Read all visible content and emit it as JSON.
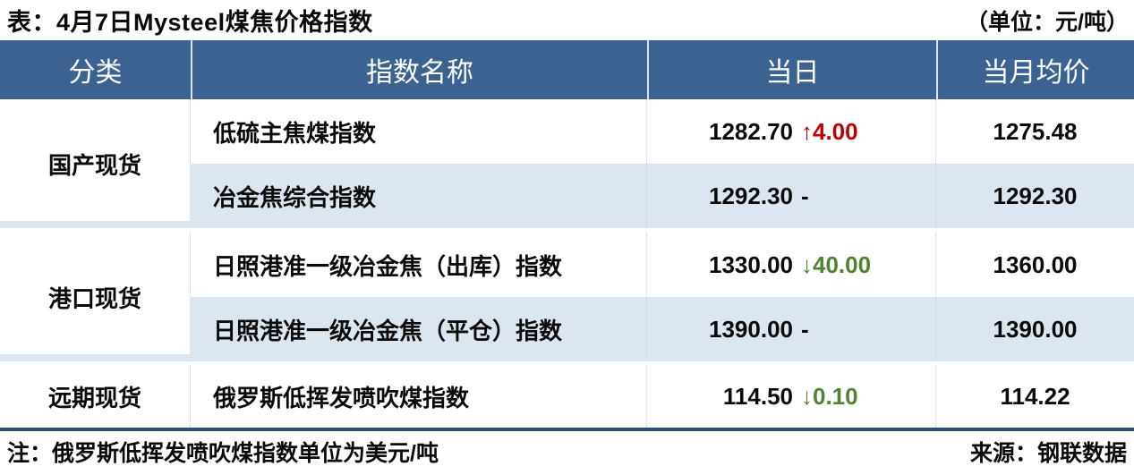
{
  "title": "表：4月7日Mysteel煤焦价格指数",
  "unit_label": "（单位：元/吨）",
  "table": {
    "headers": {
      "category": "分类",
      "index_name": "指数名称",
      "today": "当日",
      "monthly_avg": "当月均价"
    },
    "groups": [
      {
        "category": "国产现货",
        "rows": [
          {
            "name": "低硫主焦煤指数",
            "today_value": "1282.70",
            "change": "↑4.00",
            "change_dir": "up",
            "monthly_avg": "1275.48"
          },
          {
            "name": "冶金焦综合指数",
            "today_value": "1292.30",
            "change": "-",
            "change_dir": "flat",
            "monthly_avg": "1292.30"
          }
        ]
      },
      {
        "category": "港口现货",
        "rows": [
          {
            "name": "日照港准一级冶金焦（出库）指数",
            "today_value": "1330.00",
            "change": "↓40.00",
            "change_dir": "down",
            "monthly_avg": "1360.00"
          },
          {
            "name": "日照港准一级冶金焦（平仓）指数",
            "today_value": "1390.00",
            "change": "-",
            "change_dir": "flat",
            "monthly_avg": "1390.00"
          }
        ]
      },
      {
        "category": "远期现货",
        "rows": [
          {
            "name": "俄罗斯低挥发喷吹煤指数",
            "today_value": "114.50",
            "change": "↓0.10",
            "change_dir": "down",
            "monthly_avg": "114.22"
          }
        ]
      }
    ]
  },
  "footer": {
    "note": "注：俄罗斯低挥发喷吹煤指数单位为美元/吨",
    "source": "来源：钢联数据"
  },
  "colors": {
    "header_bg": "#3b6291",
    "shaded_row": "#dce6f1",
    "up_red": "#c00000",
    "down_green": "#538135",
    "divider_line": "#2b5278"
  }
}
